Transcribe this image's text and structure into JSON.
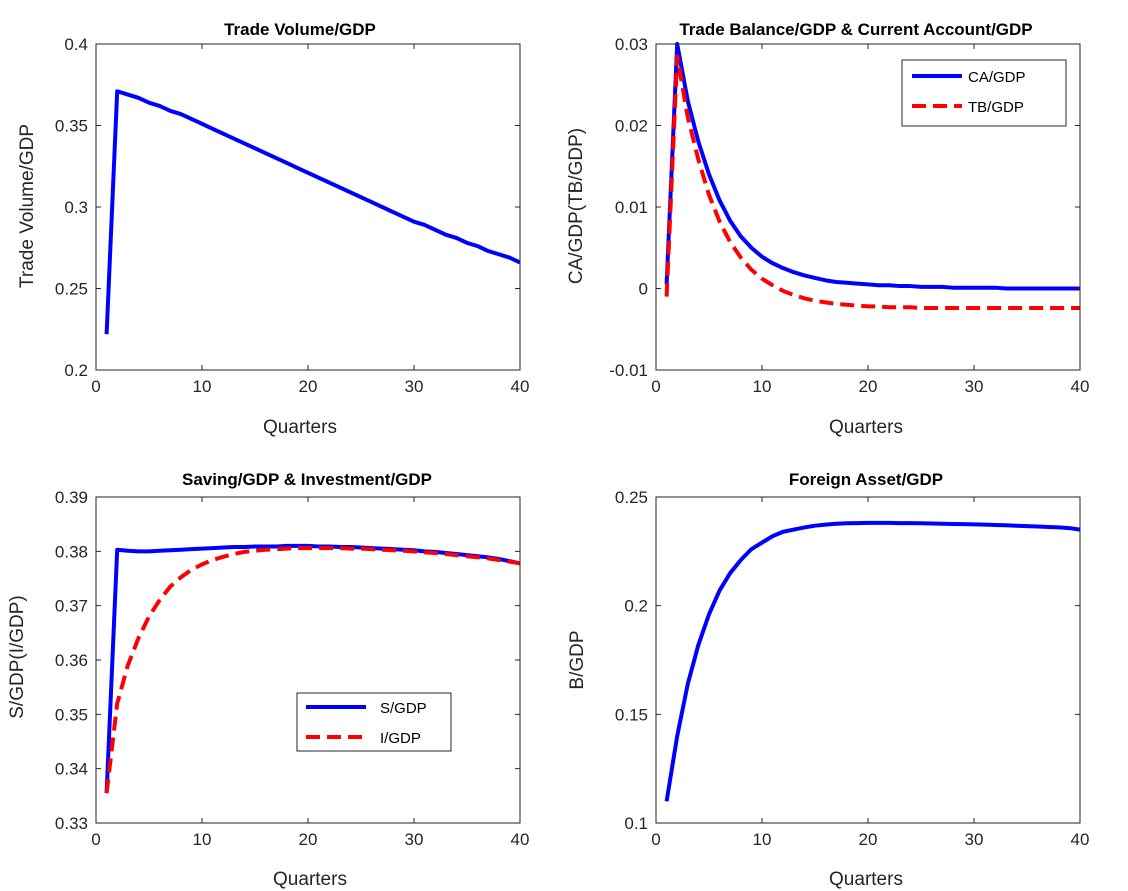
{
  "chart_data": [
    {
      "type": "line",
      "title": "Trade Volume/GDP",
      "xlabel": "Quarters",
      "ylabel": "Trade Volume/GDP",
      "xlim": [
        0,
        40
      ],
      "ylim": [
        0.2,
        0.4
      ],
      "xticks": [
        "0",
        "10",
        "20",
        "30",
        "40"
      ],
      "yticks": [
        "0.2",
        "0.25",
        "0.3",
        "0.35",
        "0.4"
      ],
      "grid": false,
      "legend": null,
      "series": [
        {
          "color": "#0000ff",
          "style": "solid",
          "x": [
            1,
            2,
            3,
            4,
            5,
            6,
            7,
            8,
            9,
            10,
            11,
            12,
            13,
            14,
            15,
            16,
            17,
            18,
            19,
            20,
            21,
            22,
            23,
            24,
            25,
            26,
            27,
            28,
            29,
            30,
            31,
            32,
            33,
            34,
            35,
            36,
            37,
            38,
            39,
            40
          ],
          "y": [
            0.222,
            0.371,
            0.369,
            0.367,
            0.364,
            0.362,
            0.359,
            0.357,
            0.354,
            0.351,
            0.348,
            0.345,
            0.342,
            0.339,
            0.336,
            0.333,
            0.33,
            0.327,
            0.324,
            0.321,
            0.318,
            0.315,
            0.312,
            0.309,
            0.306,
            0.303,
            0.3,
            0.297,
            0.294,
            0.291,
            0.289,
            0.286,
            0.283,
            0.281,
            0.278,
            0.276,
            0.273,
            0.271,
            0.269,
            0.266
          ]
        }
      ]
    },
    {
      "type": "line",
      "title": "Trade Balance/GDP & Current Account/GDP",
      "xlabel": "Quarters",
      "ylabel": "CA/GDP(TB/GDP)",
      "xlim": [
        0,
        40
      ],
      "ylim": [
        -0.01,
        0.03
      ],
      "xticks": [
        "0",
        "10",
        "20",
        "30",
        "40"
      ],
      "yticks": [
        "-0.01",
        "0",
        "0.01",
        "0.02",
        "0.03"
      ],
      "grid": false,
      "legend": "top-right",
      "series": [
        {
          "name": "CA/GDP",
          "color": "#0000ff",
          "style": "solid",
          "x": [
            1,
            2,
            3,
            4,
            5,
            6,
            7,
            8,
            9,
            10,
            11,
            12,
            13,
            14,
            15,
            16,
            17,
            18,
            19,
            20,
            21,
            22,
            23,
            24,
            25,
            26,
            27,
            28,
            29,
            30,
            31,
            32,
            33,
            34,
            35,
            36,
            37,
            38,
            39,
            40
          ],
          "y": [
            0.0005,
            0.03,
            0.023,
            0.018,
            0.014,
            0.0108,
            0.0083,
            0.0064,
            0.005,
            0.0039,
            0.0031,
            0.0025,
            0.002,
            0.0016,
            0.0013,
            0.001,
            0.0008,
            0.0007,
            0.0006,
            0.0005,
            0.0004,
            0.0004,
            0.0003,
            0.0003,
            0.0002,
            0.0002,
            0.0002,
            0.0001,
            0.0001,
            0.0001,
            0.0001,
            0.0001,
            0.0,
            0.0,
            0.0,
            0.0,
            0.0,
            0.0,
            0.0,
            0.0
          ]
        },
        {
          "name": "TB/GDP",
          "color": "#ff0000",
          "style": "dashed",
          "x": [
            1,
            2,
            3,
            4,
            5,
            6,
            7,
            8,
            9,
            10,
            11,
            12,
            13,
            14,
            15,
            16,
            17,
            18,
            19,
            20,
            21,
            22,
            23,
            24,
            25,
            26,
            27,
            28,
            29,
            30,
            31,
            32,
            33,
            34,
            35,
            36,
            37,
            38,
            39,
            40
          ],
          "y": [
            -0.001,
            0.0285,
            0.021,
            0.0158,
            0.0115,
            0.0082,
            0.0057,
            0.0038,
            0.0023,
            0.0012,
            0.0004,
            -0.0003,
            -0.0008,
            -0.0012,
            -0.0015,
            -0.0017,
            -0.0019,
            -0.002,
            -0.0021,
            -0.0022,
            -0.0022,
            -0.0023,
            -0.0023,
            -0.0023,
            -0.0024,
            -0.0024,
            -0.0024,
            -0.0024,
            -0.0024,
            -0.0024,
            -0.0024,
            -0.0024,
            -0.0024,
            -0.0024,
            -0.0024,
            -0.0024,
            -0.0024,
            -0.0024,
            -0.0024,
            -0.0024
          ]
        }
      ]
    },
    {
      "type": "line",
      "title": "Saving/GDP & Investment/GDP",
      "xlabel": "Quarters",
      "ylabel": "S/GDP(I/GDP)",
      "xlim": [
        0,
        40
      ],
      "ylim": [
        0.33,
        0.39
      ],
      "xticks": [
        "0",
        "10",
        "20",
        "30",
        "40"
      ],
      "yticks": [
        "0.33",
        "0.34",
        "0.35",
        "0.36",
        "0.37",
        "0.38",
        "0.39"
      ],
      "grid": false,
      "legend": "bottom-center",
      "series": [
        {
          "name": "S/GDP",
          "color": "#0000ff",
          "style": "solid",
          "x": [
            1,
            2,
            3,
            4,
            5,
            6,
            7,
            8,
            9,
            10,
            11,
            12,
            13,
            14,
            15,
            16,
            17,
            18,
            19,
            20,
            21,
            22,
            23,
            24,
            25,
            26,
            27,
            28,
            29,
            30,
            31,
            32,
            33,
            34,
            35,
            36,
            37,
            38,
            39,
            40
          ],
          "y": [
            0.3355,
            0.3803,
            0.3801,
            0.38,
            0.38,
            0.3801,
            0.3802,
            0.3803,
            0.3804,
            0.3805,
            0.3806,
            0.3807,
            0.3808,
            0.3808,
            0.3809,
            0.3809,
            0.3809,
            0.381,
            0.381,
            0.381,
            0.3809,
            0.3809,
            0.3808,
            0.3808,
            0.3807,
            0.3806,
            0.3805,
            0.3804,
            0.3803,
            0.3802,
            0.38,
            0.3799,
            0.3797,
            0.3795,
            0.3793,
            0.3791,
            0.3789,
            0.3786,
            0.3782,
            0.3778
          ]
        },
        {
          "name": "I/GDP",
          "color": "#ff0000",
          "style": "dashed",
          "x": [
            1,
            2,
            3,
            4,
            5,
            6,
            7,
            8,
            9,
            10,
            11,
            12,
            13,
            14,
            15,
            16,
            17,
            18,
            19,
            20,
            21,
            22,
            23,
            24,
            25,
            26,
            27,
            28,
            29,
            30,
            31,
            32,
            33,
            34,
            35,
            36,
            37,
            38,
            39,
            40
          ],
          "y": [
            0.3355,
            0.352,
            0.359,
            0.364,
            0.368,
            0.371,
            0.3735,
            0.3752,
            0.3766,
            0.3776,
            0.3784,
            0.379,
            0.3795,
            0.3799,
            0.3801,
            0.3803,
            0.3804,
            0.3805,
            0.3806,
            0.3806,
            0.3806,
            0.3806,
            0.3806,
            0.3805,
            0.3805,
            0.3804,
            0.3803,
            0.3802,
            0.3801,
            0.38,
            0.3798,
            0.3797,
            0.3795,
            0.3793,
            0.3791,
            0.3789,
            0.3787,
            0.3784,
            0.3781,
            0.3778
          ]
        }
      ]
    },
    {
      "type": "line",
      "title": "Foreign Asset/GDP",
      "xlabel": "Quarters",
      "ylabel": "B/GDP",
      "xlim": [
        0,
        40
      ],
      "ylim": [
        0.1,
        0.25
      ],
      "xticks": [
        "0",
        "10",
        "20",
        "30",
        "40"
      ],
      "yticks": [
        "0.1",
        "0.15",
        "0.2",
        "0.25"
      ],
      "grid": false,
      "legend": null,
      "series": [
        {
          "color": "#0000ff",
          "style": "solid",
          "x": [
            1,
            2,
            3,
            4,
            5,
            6,
            7,
            8,
            9,
            10,
            11,
            12,
            13,
            14,
            15,
            16,
            17,
            18,
            19,
            20,
            21,
            22,
            23,
            24,
            25,
            26,
            27,
            28,
            29,
            30,
            31,
            32,
            33,
            34,
            35,
            36,
            37,
            38,
            39,
            40
          ],
          "y": [
            0.11,
            0.14,
            0.164,
            0.182,
            0.196,
            0.207,
            0.215,
            0.221,
            0.226,
            0.229,
            0.232,
            0.234,
            0.235,
            0.236,
            0.2368,
            0.2373,
            0.2377,
            0.2379,
            0.238,
            0.2381,
            0.2381,
            0.2381,
            0.238,
            0.238,
            0.2379,
            0.2378,
            0.2377,
            0.2376,
            0.2375,
            0.2374,
            0.2373,
            0.2371,
            0.237,
            0.2368,
            0.2366,
            0.2364,
            0.2362,
            0.236,
            0.2357,
            0.235
          ]
        }
      ]
    }
  ]
}
